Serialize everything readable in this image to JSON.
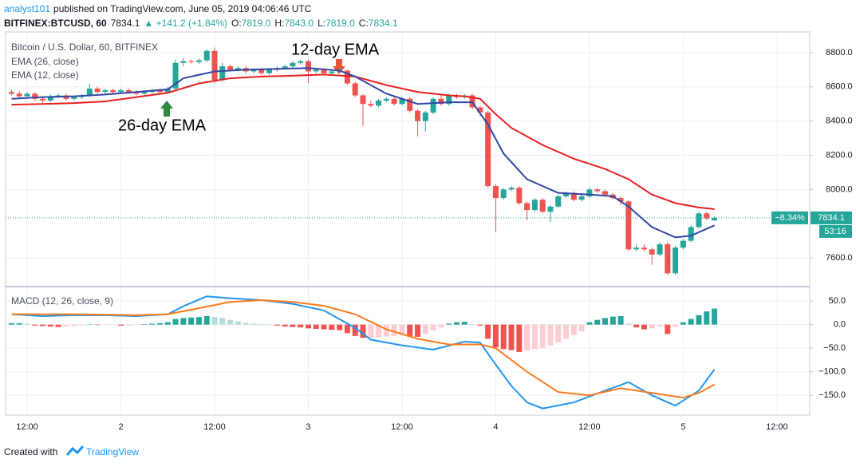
{
  "header": {
    "author": "analyst101",
    "published": "published on TradingView.com, June 05, 2019 04:06:46 UTC",
    "symbol": "BITFINEX:BTCUSD, 60",
    "last": "7834.1",
    "change": "▲ +141.2 (+1.84%)",
    "ohlc": [
      {
        "label": "O:",
        "value": "7819.0"
      },
      {
        "label": "H:",
        "value": "7843.0"
      },
      {
        "label": "L:",
        "value": "7819.0"
      },
      {
        "label": "C:",
        "value": "7834.1"
      }
    ]
  },
  "footer": {
    "created": "Created with",
    "brand": "TradingView"
  },
  "chart_data": {
    "type": "candlestick",
    "title": "Bitcoin / U.S. Dollar, 60, BITFINEX",
    "colors": {
      "up": "#26a69a",
      "down": "#ef5350"
    },
    "x": [
      -2,
      -1,
      0,
      1,
      2,
      3,
      4,
      5,
      6,
      7,
      8,
      9,
      10,
      11,
      12,
      13,
      14,
      15,
      16,
      17,
      18,
      19,
      20,
      21,
      22,
      23,
      24,
      25,
      26,
      27,
      28,
      29,
      30,
      31,
      32,
      33,
      34,
      35,
      36,
      37,
      38,
      39,
      40,
      41,
      42,
      43,
      44,
      45,
      46,
      47,
      48,
      49,
      50,
      51,
      52,
      53,
      54,
      55,
      56,
      57,
      58,
      59,
      60,
      61,
      62,
      63,
      64,
      65,
      66,
      67,
      68,
      69,
      70,
      71,
      72,
      73,
      74,
      75,
      76,
      77,
      78,
      79,
      80,
      81,
      82,
      83,
      84,
      85,
      86,
      87,
      88
    ],
    "candles": [
      [
        8570,
        8585,
        8550,
        8560
      ],
      [
        8560,
        8575,
        8535,
        8545
      ],
      [
        8545,
        8570,
        8535,
        8560
      ],
      [
        8560,
        8570,
        8515,
        8530
      ],
      [
        8530,
        8545,
        8505,
        8520
      ],
      [
        8520,
        8555,
        8510,
        8545
      ],
      [
        8545,
        8560,
        8535,
        8550
      ],
      [
        8550,
        8560,
        8520,
        8530
      ],
      [
        8530,
        8550,
        8520,
        8540
      ],
      [
        8540,
        8560,
        8530,
        8550
      ],
      [
        8550,
        8620,
        8540,
        8590
      ],
      [
        8590,
        8600,
        8560,
        8570
      ],
      [
        8570,
        8590,
        8560,
        8580
      ],
      [
        8580,
        8590,
        8560,
        8570
      ],
      [
        8570,
        8590,
        8560,
        8580
      ],
      [
        8580,
        8590,
        8560,
        8570
      ],
      [
        8570,
        8580,
        8550,
        8560
      ],
      [
        8560,
        8580,
        8550,
        8570
      ],
      [
        8570,
        8590,
        8560,
        8580
      ],
      [
        8580,
        8590,
        8560,
        8570
      ],
      [
        8570,
        8600,
        8560,
        8590
      ],
      [
        8590,
        8760,
        8580,
        8740
      ],
      [
        8740,
        8770,
        8720,
        8750
      ],
      [
        8750,
        8760,
        8735,
        8745
      ],
      [
        8745,
        8765,
        8735,
        8755
      ],
      [
        8755,
        8820,
        8745,
        8810
      ],
      [
        8810,
        8830,
        8620,
        8640
      ],
      [
        8640,
        8740,
        8630,
        8720
      ],
      [
        8720,
        8730,
        8690,
        8700
      ],
      [
        8700,
        8720,
        8690,
        8710
      ],
      [
        8710,
        8720,
        8680,
        8690
      ],
      [
        8690,
        8710,
        8680,
        8700
      ],
      [
        8700,
        8710,
        8670,
        8680
      ],
      [
        8680,
        8710,
        8670,
        8700
      ],
      [
        8700,
        8720,
        8690,
        8710
      ],
      [
        8710,
        8730,
        8700,
        8720
      ],
      [
        8720,
        8750,
        8710,
        8740
      ],
      [
        8740,
        8760,
        8730,
        8750
      ],
      [
        8750,
        8760,
        8620,
        8690
      ],
      [
        8690,
        8710,
        8680,
        8700
      ],
      [
        8700,
        8710,
        8670,
        8680
      ],
      [
        8680,
        8700,
        8670,
        8690
      ],
      [
        8690,
        8710,
        8680,
        8695
      ],
      [
        8695,
        8700,
        8610,
        8620
      ],
      [
        8620,
        8630,
        8540,
        8550
      ],
      [
        8550,
        8560,
        8370,
        8500
      ],
      [
        8500,
        8520,
        8480,
        8490
      ],
      [
        8490,
        8530,
        8480,
        8520
      ],
      [
        8520,
        8540,
        8510,
        8530
      ],
      [
        8530,
        8540,
        8490,
        8500
      ],
      [
        8500,
        8540,
        8490,
        8530
      ],
      [
        8530,
        8540,
        8450,
        8460
      ],
      [
        8460,
        8470,
        8310,
        8400
      ],
      [
        8400,
        8460,
        8340,
        8450
      ],
      [
        8450,
        8540,
        8440,
        8530
      ],
      [
        8530,
        8550,
        8490,
        8500
      ],
      [
        8500,
        8560,
        8490,
        8550
      ],
      [
        8550,
        8560,
        8530,
        8540
      ],
      [
        8540,
        8560,
        8530,
        8550
      ],
      [
        8550,
        8560,
        8470,
        8480
      ],
      [
        8480,
        8490,
        8430,
        8450
      ],
      [
        8450,
        8460,
        8010,
        8020
      ],
      [
        8020,
        8030,
        7750,
        7950
      ],
      [
        7950,
        8010,
        7940,
        8000
      ],
      [
        8000,
        8020,
        7990,
        8010
      ],
      [
        8010,
        8020,
        7910,
        7920
      ],
      [
        7920,
        7930,
        7820,
        7880
      ],
      [
        7880,
        7950,
        7870,
        7940
      ],
      [
        7940,
        7950,
        7860,
        7870
      ],
      [
        7870,
        7910,
        7810,
        7900
      ],
      [
        7900,
        7970,
        7890,
        7960
      ],
      [
        7960,
        7990,
        7950,
        7980
      ],
      [
        7980,
        7990,
        7930,
        7940
      ],
      [
        7940,
        7970,
        7930,
        7960
      ],
      [
        7960,
        8010,
        7950,
        8000
      ],
      [
        8000,
        8010,
        7980,
        7990
      ],
      [
        7990,
        8000,
        7960,
        7970
      ],
      [
        7970,
        7980,
        7940,
        7950
      ],
      [
        7950,
        7960,
        7910,
        7930
      ],
      [
        7930,
        7940,
        7640,
        7650
      ],
      [
        7650,
        7680,
        7640,
        7660
      ],
      [
        7660,
        7680,
        7640,
        7650
      ],
      [
        7650,
        7660,
        7560,
        7620
      ],
      [
        7620,
        7690,
        7610,
        7680
      ],
      [
        7680,
        7690,
        7500,
        7510
      ],
      [
        7510,
        7670,
        7500,
        7660
      ],
      [
        7660,
        7710,
        7650,
        7700
      ],
      [
        7700,
        7790,
        7690,
        7780
      ],
      [
        7780,
        7870,
        7770,
        7860
      ],
      [
        7860,
        7870,
        7820,
        7830
      ],
      [
        7819,
        7843,
        7819,
        7834.1
      ]
    ],
    "ema": [
      {
        "name": "EMA (26, close)",
        "color": "#e8201f",
        "x": [
          -2,
          2,
          6,
          10,
          14,
          18,
          22,
          26,
          30,
          34,
          38,
          42,
          46,
          50,
          54,
          56,
          58,
          60,
          62,
          66,
          70,
          74,
          77,
          80,
          83,
          86,
          88
        ],
        "values": [
          8496,
          8500,
          8505,
          8515,
          8540,
          8565,
          8620,
          8650,
          8660,
          8665,
          8672,
          8660,
          8610,
          8570,
          8550,
          8545,
          8530,
          8440,
          8360,
          8260,
          8180,
          8120,
          8060,
          7970,
          7920,
          7895,
          7885
        ]
      },
      {
        "name": "EMA (12, close)",
        "color": "#3346a8",
        "x": [
          -2,
          2,
          6,
          10,
          14,
          18,
          20,
          24,
          28,
          32,
          36,
          40,
          42,
          46,
          50,
          54,
          57,
          59,
          61,
          64,
          68,
          72,
          75,
          77,
          80,
          83,
          85,
          88
        ],
        "values": [
          8530,
          8540,
          8545,
          8555,
          8570,
          8585,
          8650,
          8690,
          8700,
          8705,
          8710,
          8695,
          8660,
          8560,
          8500,
          8510,
          8510,
          8380,
          8210,
          8060,
          7980,
          7970,
          7960,
          7900,
          7780,
          7720,
          7730,
          7790
        ]
      }
    ],
    "xlim": [
      -2.76,
      100.2
    ],
    "xticks": [
      {
        "value": 0,
        "label": "12:00"
      },
      {
        "value": 12,
        "label": "2"
      },
      {
        "value": 24,
        "label": "12:00"
      },
      {
        "value": 36,
        "label": "3"
      },
      {
        "value": 48,
        "label": "12:00"
      },
      {
        "value": 60,
        "label": "4"
      },
      {
        "value": 72,
        "label": "12:00"
      },
      {
        "value": 84,
        "label": "5"
      },
      {
        "value": 96,
        "label": "12:00"
      }
    ],
    "ylim": [
      7437,
      8921
    ],
    "yticks": [
      {
        "value": 8800,
        "label": "8800.0"
      },
      {
        "value": 8600,
        "label": "8600.0"
      },
      {
        "value": 8400,
        "label": "8400.0"
      },
      {
        "value": 8200,
        "label": "8200.0"
      },
      {
        "value": 8000,
        "label": "8000.0"
      },
      {
        "value": 7600,
        "label": "7600.0"
      }
    ],
    "grid": true,
    "last_price": 7834.1,
    "last_change_label": "−8.34%",
    "countdown": "53:16",
    "annotations": [
      "26-day EMA",
      "12-day EMA"
    ],
    "macd": {
      "title": "MACD (12, 26, close, 9)",
      "ylim": [
        -192,
        79
      ],
      "yticks": [
        {
          "value": 50,
          "label": "50.0"
        },
        {
          "value": 0,
          "label": "0.0"
        },
        {
          "value": -50,
          "label": "−50.0"
        },
        {
          "value": -100,
          "label": "−100.0"
        },
        {
          "value": -150,
          "label": "−150.0"
        }
      ],
      "histogram": [
        3,
        3,
        2,
        -2,
        -3,
        -4,
        -5,
        -4,
        -3,
        -2,
        0,
        -1,
        -1,
        -1,
        -2,
        -2,
        -1,
        1,
        2,
        3,
        5,
        12,
        14,
        15,
        16,
        18,
        16,
        14,
        10,
        7,
        4,
        2,
        1,
        0,
        -2,
        -4,
        -5,
        -6,
        -8,
        -9,
        -10,
        -11,
        -12,
        -18,
        -24,
        -28,
        -28,
        -27,
        -25,
        -24,
        -22,
        -25,
        -26,
        -20,
        -12,
        -6,
        2,
        5,
        6,
        1,
        -2,
        -30,
        -48,
        -52,
        -54,
        -58,
        -55,
        -52,
        -50,
        -45,
        -38,
        -30,
        -22,
        -14,
        5,
        10,
        14,
        17,
        18,
        2,
        -6,
        -10,
        -8,
        -4,
        -20,
        -5,
        5,
        12,
        20,
        28,
        34
      ],
      "histogram_colors": [
        "#26a69a",
        "#b2dfdb",
        "#ef5350",
        "#ffcdd2"
      ],
      "series": [
        {
          "color": "#2196f3",
          "x": [
            -2,
            2,
            6,
            10,
            14,
            18,
            20,
            23,
            26,
            30,
            34,
            38,
            42,
            44,
            48,
            52,
            56,
            58,
            60,
            62,
            64,
            66,
            70,
            74,
            77,
            80,
            83,
            86,
            88
          ],
          "values": [
            22,
            18,
            20,
            20,
            18,
            22,
            39,
            60,
            56,
            52,
            44,
            30,
            -7,
            -32,
            -44,
            -53,
            -36,
            -38,
            -85,
            -130,
            -165,
            -178,
            -165,
            -140,
            -122,
            -150,
            -172,
            -140,
            -95
          ]
        },
        {
          "color": "#ff7a1a",
          "x": [
            -2,
            6,
            14,
            18,
            22,
            26,
            30,
            34,
            38,
            42,
            46,
            50,
            54,
            58,
            60,
            64,
            68,
            72,
            76,
            80,
            84,
            86,
            88
          ],
          "values": [
            22,
            22,
            20,
            22,
            35,
            48,
            52,
            48,
            40,
            22,
            -10,
            -30,
            -42,
            -42,
            -50,
            -100,
            -143,
            -150,
            -135,
            -145,
            -155,
            -145,
            -127
          ]
        }
      ]
    }
  }
}
